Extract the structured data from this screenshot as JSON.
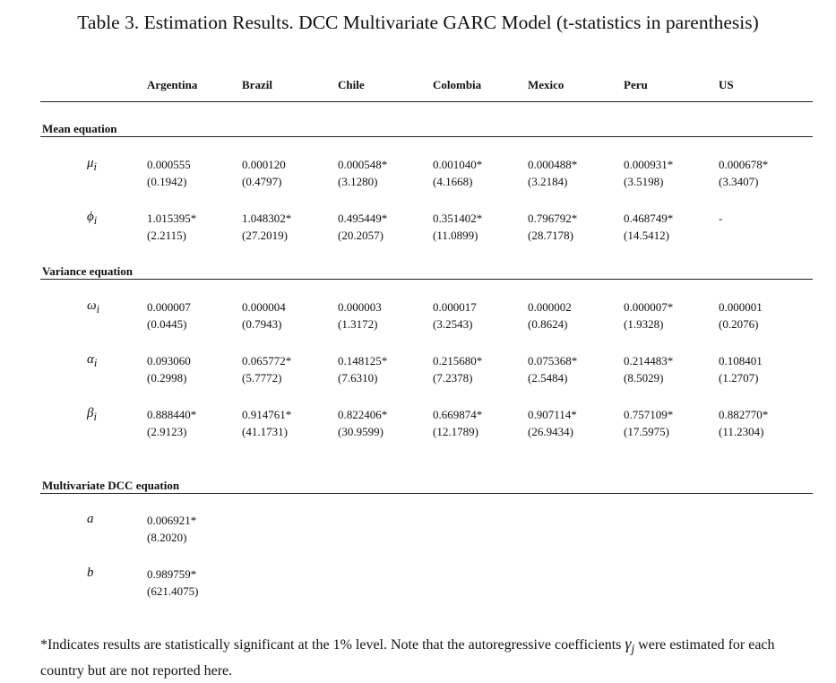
{
  "title": "Table 3. Estimation Results. DCC Multivariate GARC Model (t-statistics in parenthesis)",
  "columns": [
    "Argentina",
    "Brazil",
    "Chile",
    "Colombia",
    "Mexico",
    "Peru",
    "US"
  ],
  "sections": [
    {
      "label": "Mean equation",
      "rows": [
        {
          "symbol": "μ",
          "sub": "i",
          "coef": [
            "0.000555",
            "0.000120",
            "0.000548*",
            "0.001040*",
            "0.000488*",
            "0.000931*",
            "0.000678*"
          ],
          "tstat": [
            "(0.1942)",
            "(0.4797)",
            "(3.1280)",
            "(4.1668)",
            "(3.2184)",
            "(3.5198)",
            "(3.3407)"
          ]
        },
        {
          "symbol": "ϕ",
          "sub": "i",
          "coef": [
            "1.015395*",
            "1.048302*",
            "0.495449*",
            "0.351402*",
            "0.796792*",
            "0.468749*",
            "-"
          ],
          "tstat": [
            "(2.2115)",
            "(27.2019)",
            "(20.2057)",
            "(11.0899)",
            "(28.7178)",
            "(14.5412)",
            ""
          ]
        }
      ]
    },
    {
      "label": "Variance equation",
      "rows": [
        {
          "symbol": "ω",
          "sub": "i",
          "coef": [
            "0.000007",
            "0.000004",
            "0.000003",
            "0.000017",
            "0.000002",
            "0.000007*",
            "0.000001"
          ],
          "tstat": [
            "(0.0445)",
            "(0.7943)",
            "(1.3172)",
            "(3.2543)",
            "(0.8624)",
            "(1.9328)",
            "(0.2076)"
          ]
        },
        {
          "symbol": "α",
          "sub": "i",
          "coef": [
            "0.093060",
            "0.065772*",
            "0.148125*",
            "0.215680*",
            "0.075368*",
            "0.214483*",
            "0.108401"
          ],
          "tstat": [
            "(0.2998)",
            "(5.7772)",
            "(7.6310)",
            "(7.2378)",
            "(2.5484)",
            "(8.5029)",
            "(1.2707)"
          ]
        },
        {
          "symbol": "β",
          "sub": "i",
          "coef": [
            "0.888440*",
            "0.914761*",
            "0.822406*",
            "0.669874*",
            "0.907114*",
            "0.757109*",
            "0.882770*"
          ],
          "tstat": [
            "(2.9123)",
            "(41.1731)",
            "(30.9599)",
            "(12.1789)",
            "(26.9434)",
            "(17.5975)",
            "(11.2304)"
          ]
        }
      ]
    },
    {
      "label": "Multivariate DCC equation",
      "rows": [
        {
          "symbol": "a",
          "sub": "",
          "coef": [
            "0.006921*"
          ],
          "tstat": [
            "(8.2020)"
          ]
        },
        {
          "symbol": "b",
          "sub": "",
          "coef": [
            "0.989759*"
          ],
          "tstat": [
            "(621.4075)"
          ]
        }
      ]
    }
  ],
  "footnote": {
    "before": "*Indicates results are statistically significant at the 1% level. Note that the autoregressive coefficients ",
    "symbol": "γ",
    "sub": "j",
    "after": " were estimated for each country but are not reported here."
  }
}
